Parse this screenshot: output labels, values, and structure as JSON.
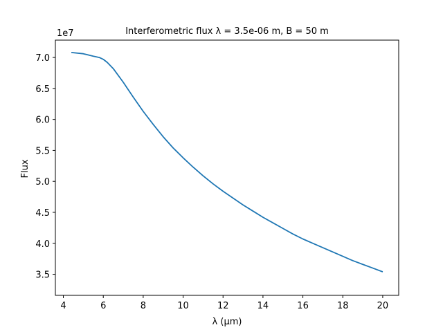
{
  "chart_data": {
    "type": "line",
    "title": "Interferometric flux λ = 3.5e-06 m, B = 50 m",
    "xlabel": "λ (μm)",
    "ylabel": "Flux",
    "y_offset_label": "1e7",
    "xlim": [
      3.6,
      20.8
    ],
    "ylim": [
      3.16,
      7.28
    ],
    "x_ticks": [
      4,
      6,
      8,
      10,
      12,
      14,
      16,
      18,
      20
    ],
    "x_tick_labels": [
      "4",
      "6",
      "8",
      "10",
      "12",
      "14",
      "16",
      "18",
      "20"
    ],
    "y_ticks": [
      3.5,
      4.0,
      4.5,
      5.0,
      5.5,
      6.0,
      6.5,
      7.0
    ],
    "y_tick_labels": [
      "3.5",
      "4.0",
      "4.5",
      "5.0",
      "5.5",
      "6.0",
      "6.5",
      "7.0"
    ],
    "grid": false,
    "series": [
      {
        "color": "#1f77b4",
        "x": [
          4.4,
          5.0,
          5.5,
          5.8,
          6.0,
          6.2,
          6.5,
          7.0,
          7.5,
          8.0,
          8.5,
          9.0,
          9.5,
          10.0,
          10.5,
          11.0,
          11.5,
          12.0,
          12.5,
          13.0,
          13.5,
          14.0,
          14.5,
          15.0,
          15.5,
          16.0,
          16.5,
          17.0,
          17.5,
          18.0,
          18.5,
          19.0,
          19.5,
          20.0
        ],
        "y": [
          7.08,
          7.06,
          7.02,
          7.0,
          6.97,
          6.92,
          6.82,
          6.6,
          6.36,
          6.13,
          5.92,
          5.72,
          5.54,
          5.38,
          5.23,
          5.09,
          4.96,
          4.84,
          4.73,
          4.62,
          4.52,
          4.42,
          4.33,
          4.24,
          4.15,
          4.07,
          4.0,
          3.93,
          3.86,
          3.79,
          3.72,
          3.66,
          3.6,
          3.54
        ]
      }
    ]
  }
}
